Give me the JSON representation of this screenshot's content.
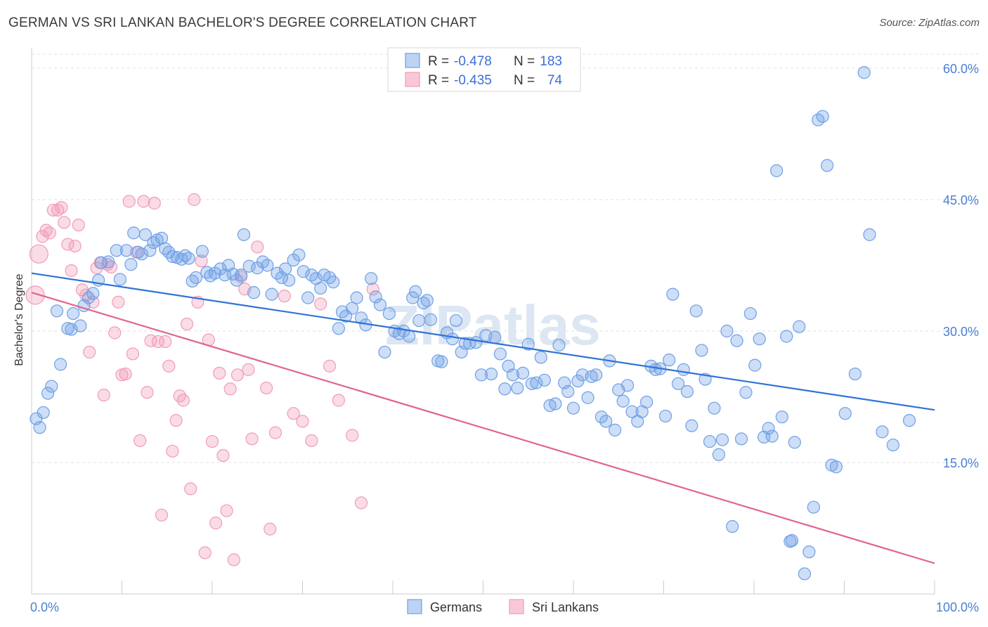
{
  "title": "GERMAN VS SRI LANKAN BACHELOR'S DEGREE CORRELATION CHART",
  "source": "Source: ZipAtlas.com",
  "watermark": "ZIPatlas",
  "colors": {
    "german": "#6fa0e6",
    "german_line": "#2f73d6",
    "srilankan": "#f29bb7",
    "srilankan_line": "#e0648f",
    "tick": "#4a7fd4"
  },
  "legend": {
    "r_label": "R =",
    "n_label": "N =",
    "german_r": "-0.478",
    "german_n": "183",
    "srilankan_r": "-0.435",
    "srilankan_n": "74"
  },
  "chart_data": {
    "type": "scatter",
    "title": "GERMAN VS SRI LANKAN BACHELOR'S DEGREE CORRELATION CHART",
    "xlabel": "",
    "ylabel": "Bachelor's Degree",
    "xlim": [
      0,
      100
    ],
    "ylim": [
      0,
      60
    ],
    "x_tick_labels": [
      "0.0%",
      "100.0%"
    ],
    "y_ticks": [
      15,
      30,
      45,
      60
    ],
    "y_tick_labels": [
      "15.0%",
      "30.0%",
      "45.0%",
      "60.0%"
    ],
    "grid": true,
    "legend_position": "top-center",
    "series": [
      {
        "name": "Germans",
        "trend": {
          "x": [
            0,
            100
          ],
          "y": [
            36.6,
            21.0
          ]
        },
        "points": [
          [
            0.5,
            20
          ],
          [
            0.9,
            19
          ],
          [
            1.3,
            20.7
          ],
          [
            1.8,
            22.9
          ],
          [
            2.2,
            23.7
          ],
          [
            2.8,
            32.3
          ],
          [
            3.2,
            26.2
          ],
          [
            4.0,
            30.3
          ],
          [
            4.4,
            30.2
          ],
          [
            4.6,
            32
          ],
          [
            5.4,
            30.6
          ],
          [
            5.8,
            32.9
          ],
          [
            6.3,
            33.8
          ],
          [
            6.8,
            34.3
          ],
          [
            7.4,
            35.8
          ],
          [
            7.7,
            37.8
          ],
          [
            8.5,
            37.9
          ],
          [
            9.4,
            39.2
          ],
          [
            9.8,
            35.9
          ],
          [
            10.5,
            39.2
          ],
          [
            11.0,
            37.6
          ],
          [
            11.3,
            41.2
          ],
          [
            11.8,
            39.0
          ],
          [
            12.2,
            38.8
          ],
          [
            12.6,
            41.0
          ],
          [
            13.1,
            39.2
          ],
          [
            13.5,
            40.1
          ],
          [
            13.9,
            40.4
          ],
          [
            14.4,
            40.6
          ],
          [
            14.8,
            39.4
          ],
          [
            15.2,
            39.0
          ],
          [
            15.6,
            38.5
          ],
          [
            16.1,
            38.4
          ],
          [
            16.6,
            38.2
          ],
          [
            17.0,
            38.6
          ],
          [
            17.4,
            38.3
          ],
          [
            17.8,
            35.7
          ],
          [
            18.2,
            36.1
          ],
          [
            18.9,
            39.1
          ],
          [
            19.4,
            36.7
          ],
          [
            19.8,
            36.3
          ],
          [
            20.3,
            36.6
          ],
          [
            20.9,
            37.1
          ],
          [
            21.4,
            36.4
          ],
          [
            21.8,
            37.5
          ],
          [
            22.3,
            36.5
          ],
          [
            22.7,
            35.8
          ],
          [
            23.2,
            36.4
          ],
          [
            23.5,
            41.0
          ],
          [
            24.1,
            37.4
          ],
          [
            24.6,
            34.4
          ],
          [
            25.0,
            37.2
          ],
          [
            25.6,
            37.9
          ],
          [
            26.1,
            37.5
          ],
          [
            26.6,
            34.2
          ],
          [
            27.2,
            36.6
          ],
          [
            27.7,
            36.1
          ],
          [
            28.1,
            37.1
          ],
          [
            28.5,
            35.8
          ],
          [
            29.0,
            38.1
          ],
          [
            29.6,
            38.7
          ],
          [
            30.1,
            36.8
          ],
          [
            30.6,
            33.8
          ],
          [
            31.0,
            36.4
          ],
          [
            31.5,
            36.0
          ],
          [
            32.0,
            34.9
          ],
          [
            32.4,
            36.4
          ],
          [
            33.0,
            36.1
          ],
          [
            33.4,
            35.6
          ],
          [
            34.0,
            30.3
          ],
          [
            34.4,
            32.2
          ],
          [
            34.8,
            31.7
          ],
          [
            35.5,
            32.6
          ],
          [
            36.0,
            33.8
          ],
          [
            36.5,
            31.5
          ],
          [
            37.0,
            30.7
          ],
          [
            37.6,
            36.0
          ],
          [
            38.1,
            33.9
          ],
          [
            38.6,
            33.0
          ],
          [
            39.1,
            27.6
          ],
          [
            39.6,
            32.0
          ],
          [
            40.2,
            30.0
          ],
          [
            40.7,
            29.7
          ],
          [
            41.2,
            30.0
          ],
          [
            41.8,
            29.4
          ],
          [
            42.2,
            33.8
          ],
          [
            42.5,
            34.5
          ],
          [
            42.9,
            31.2
          ],
          [
            43.4,
            33.2
          ],
          [
            43.8,
            33.5
          ],
          [
            44.2,
            31.3
          ],
          [
            45.0,
            26.6
          ],
          [
            45.4,
            26.5
          ],
          [
            46.0,
            29.8
          ],
          [
            46.6,
            29.1
          ],
          [
            47.0,
            31.2
          ],
          [
            47.6,
            27.6
          ],
          [
            48.0,
            28.6
          ],
          [
            48.5,
            28.6
          ],
          [
            49.2,
            28.7
          ],
          [
            49.8,
            25.0
          ],
          [
            50.3,
            29.5
          ],
          [
            50.9,
            25.1
          ],
          [
            51.3,
            29.3
          ],
          [
            51.9,
            27.4
          ],
          [
            52.4,
            23.4
          ],
          [
            52.8,
            26.0
          ],
          [
            53.3,
            25.0
          ],
          [
            53.8,
            23.5
          ],
          [
            54.4,
            25.2
          ],
          [
            55.0,
            28.5
          ],
          [
            55.4,
            24.0
          ],
          [
            55.9,
            24.1
          ],
          [
            56.4,
            27.0
          ],
          [
            56.8,
            24.4
          ],
          [
            57.4,
            21.5
          ],
          [
            58.0,
            21.7
          ],
          [
            58.4,
            28.4
          ],
          [
            59.0,
            24.1
          ],
          [
            59.4,
            23.1
          ],
          [
            60.0,
            21.2
          ],
          [
            60.5,
            24.3
          ],
          [
            61.0,
            25.0
          ],
          [
            61.6,
            22.4
          ],
          [
            62.0,
            24.8
          ],
          [
            62.5,
            25.0
          ],
          [
            63.1,
            20.2
          ],
          [
            63.6,
            19.7
          ],
          [
            64.0,
            26.6
          ],
          [
            64.6,
            18.7
          ],
          [
            65.0,
            23.3
          ],
          [
            65.5,
            22.0
          ],
          [
            66.0,
            23.8
          ],
          [
            66.5,
            20.8
          ],
          [
            67.1,
            19.7
          ],
          [
            67.6,
            20.8
          ],
          [
            68.1,
            21.9
          ],
          [
            68.6,
            26.0
          ],
          [
            69.1,
            25.6
          ],
          [
            69.6,
            25.7
          ],
          [
            70.2,
            20.3
          ],
          [
            70.6,
            26.7
          ],
          [
            71.0,
            34.2
          ],
          [
            71.6,
            24.0
          ],
          [
            72.2,
            25.6
          ],
          [
            72.6,
            23.1
          ],
          [
            73.1,
            19.2
          ],
          [
            73.6,
            32.3
          ],
          [
            74.2,
            27.8
          ],
          [
            74.6,
            24.5
          ],
          [
            75.1,
            17.4
          ],
          [
            75.6,
            21.2
          ],
          [
            76.1,
            15.9
          ],
          [
            76.5,
            17.6
          ],
          [
            77.0,
            30.0
          ],
          [
            77.6,
            7.7
          ],
          [
            78.1,
            28.9
          ],
          [
            78.6,
            17.7
          ],
          [
            79.1,
            23.0
          ],
          [
            79.6,
            32.0
          ],
          [
            80.1,
            26.1
          ],
          [
            80.6,
            29.1
          ],
          [
            81.1,
            17.9
          ],
          [
            81.6,
            18.9
          ],
          [
            82.0,
            18.0
          ],
          [
            82.5,
            48.3
          ],
          [
            83.1,
            20.2
          ],
          [
            83.6,
            29.4
          ],
          [
            84.0,
            6.0
          ],
          [
            84.5,
            17.3
          ],
          [
            85.0,
            30.5
          ],
          [
            85.6,
            2.3
          ],
          [
            86.1,
            4.8
          ],
          [
            86.6,
            9.9
          ],
          [
            87.1,
            54.1
          ],
          [
            87.6,
            54.5
          ],
          [
            88.1,
            48.9
          ],
          [
            88.6,
            14.7
          ],
          [
            89.1,
            14.5
          ],
          [
            90.1,
            20.6
          ],
          [
            91.2,
            25.1
          ],
          [
            92.2,
            59.5
          ],
          [
            92.8,
            41.0
          ],
          [
            94.2,
            18.5
          ],
          [
            95.4,
            17.0
          ],
          [
            97.2,
            19.8
          ],
          [
            84.2,
            6.1
          ]
        ]
      },
      {
        "name": "Sri Lankans",
        "trend": {
          "x": [
            0,
            100
          ],
          "y": [
            34.4,
            3.5
          ]
        },
        "points": [
          [
            0.4,
            34.1
          ],
          [
            0.8,
            38.8
          ],
          [
            1.2,
            40.8
          ],
          [
            1.6,
            41.5
          ],
          [
            2.0,
            41.2
          ],
          [
            2.4,
            43.8
          ],
          [
            2.9,
            43.8
          ],
          [
            3.3,
            44.1
          ],
          [
            3.6,
            42.4
          ],
          [
            4.0,
            39.9
          ],
          [
            4.4,
            36.9
          ],
          [
            4.8,
            39.7
          ],
          [
            5.2,
            42.1
          ],
          [
            5.6,
            34.7
          ],
          [
            6.0,
            34.1
          ],
          [
            6.4,
            27.6
          ],
          [
            6.8,
            33.3
          ],
          [
            7.2,
            37.2
          ],
          [
            7.6,
            37.8
          ],
          [
            8.0,
            22.7
          ],
          [
            8.4,
            37.6
          ],
          [
            8.8,
            37.3
          ],
          [
            9.2,
            29.8
          ],
          [
            9.6,
            33.3
          ],
          [
            10.0,
            25.0
          ],
          [
            10.4,
            25.1
          ],
          [
            10.8,
            44.8
          ],
          [
            11.2,
            27.4
          ],
          [
            11.6,
            39.0
          ],
          [
            12.0,
            17.5
          ],
          [
            12.4,
            44.8
          ],
          [
            12.8,
            23.0
          ],
          [
            13.2,
            28.9
          ],
          [
            13.6,
            44.6
          ],
          [
            14.0,
            28.8
          ],
          [
            14.4,
            9.0
          ],
          [
            14.8,
            28.8
          ],
          [
            15.2,
            26.0
          ],
          [
            15.6,
            16.3
          ],
          [
            16.0,
            19.8
          ],
          [
            16.4,
            22.6
          ],
          [
            16.8,
            22.1
          ],
          [
            17.2,
            30.8
          ],
          [
            17.6,
            12.0
          ],
          [
            18.0,
            45.0
          ],
          [
            18.4,
            33.3
          ],
          [
            18.8,
            38.0
          ],
          [
            19.2,
            4.7
          ],
          [
            19.6,
            29.0
          ],
          [
            20.0,
            17.4
          ],
          [
            20.4,
            8.1
          ],
          [
            20.8,
            25.2
          ],
          [
            21.2,
            15.8
          ],
          [
            21.6,
            9.5
          ],
          [
            22.0,
            23.4
          ],
          [
            22.4,
            3.9
          ],
          [
            22.8,
            25.0
          ],
          [
            23.2,
            36.2
          ],
          [
            23.6,
            34.8
          ],
          [
            24.0,
            25.6
          ],
          [
            24.4,
            17.7
          ],
          [
            25.0,
            39.6
          ],
          [
            26.0,
            23.5
          ],
          [
            26.4,
            7.4
          ],
          [
            27.0,
            18.4
          ],
          [
            28.0,
            34.0
          ],
          [
            29.0,
            20.6
          ],
          [
            30.0,
            19.7
          ],
          [
            31.0,
            17.5
          ],
          [
            32.0,
            33.1
          ],
          [
            33.0,
            26.0
          ],
          [
            34.0,
            22.1
          ],
          [
            35.5,
            18.1
          ],
          [
            36.5,
            10.4
          ],
          [
            37.8,
            34.8
          ]
        ]
      }
    ]
  },
  "bottom_legend": {
    "german": "Germans",
    "srilankan": "Sri Lankans"
  }
}
